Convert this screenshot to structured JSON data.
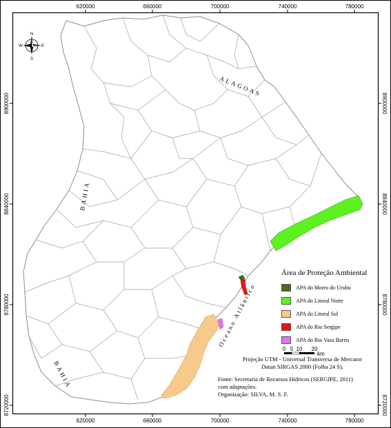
{
  "map": {
    "neighbors": {
      "north": "ALAGOAS",
      "west_upper": "BAHIA",
      "west_lower": "BAHIA"
    },
    "ocean_label": "Oceano Atlântico",
    "compass": {
      "n": "N",
      "s": "S",
      "e": "E",
      "w": "W"
    },
    "grid": {
      "x_ticks": [
        "620000",
        "660000",
        "700000",
        "740000",
        "780000"
      ],
      "y_ticks": [
        "8900000",
        "8840000",
        "8780000",
        "8720000"
      ]
    },
    "scale_bar": {
      "ticks": [
        "0",
        "5",
        "10",
        "20"
      ],
      "unit": "km"
    },
    "colors": {
      "state_fill": "#ffffff",
      "boundary": "#8c8c8c",
      "frame": "#000000",
      "apa_morro_urubu": "#4a6b1a",
      "apa_litoral_norte": "#5cf21f",
      "apa_litoral_sul": "#f7c98a",
      "apa_rio_sergipe": "#ee1111",
      "apa_rio_vaza_barris": "#dd77ee"
    }
  },
  "legend": {
    "title": "Área de Proteção Ambiental",
    "items": [
      {
        "label": "APA do Morro do Urubu",
        "color": "#4a6b1a"
      },
      {
        "label": "APA  do Litoral Norte",
        "color": "#5cf21f"
      },
      {
        "label": "APA do Litoral Sul",
        "color": "#f7c98a"
      },
      {
        "label": "APA do Rio Sergipe",
        "color": "#ee1111"
      },
      {
        "label": "APA do Rio Vaza Barris",
        "color": "#dd77ee"
      }
    ]
  },
  "credits": {
    "projection_line1": "Projeção UTM - Universal Transversa de Mercator",
    "projection_line2": "Datun SIRGAS 2000 (Folha 24 S).",
    "source_line1": "Fonte: Secretaria de Recursos Hídricos (SERGIPE, 2011)",
    "source_line2": "com adaptações.",
    "organization": "Organização: SILVA, M. S. F."
  }
}
